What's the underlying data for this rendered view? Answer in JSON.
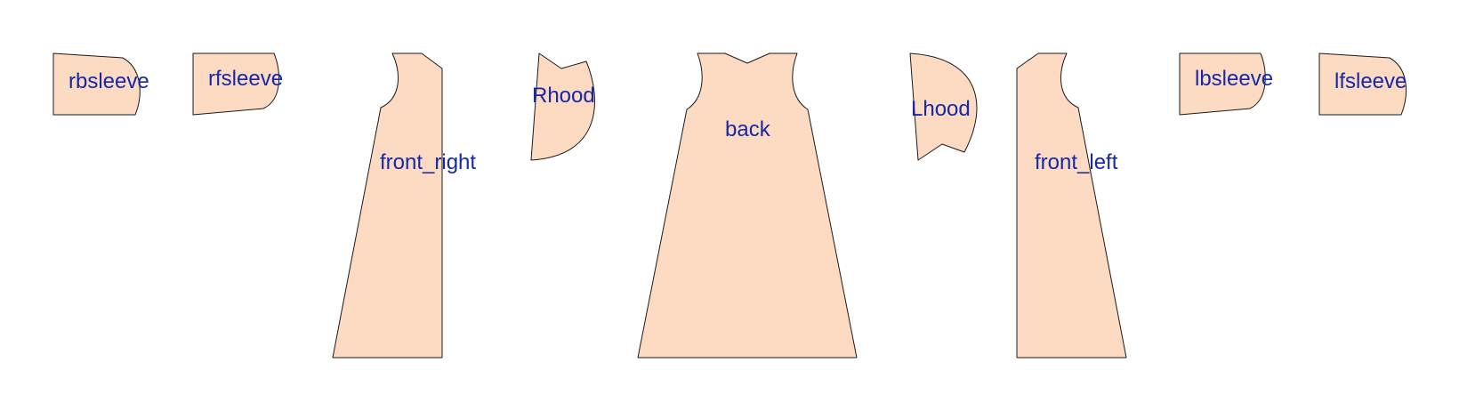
{
  "colors": {
    "piece_fill": "#fddac2",
    "piece_stroke": "#1a1a1a",
    "label_color": "#1428a8",
    "background": "#ffffff"
  },
  "pieces": [
    {
      "id": "rbsleeve",
      "label": "rbsleeve"
    },
    {
      "id": "rfsleeve",
      "label": "rfsleeve"
    },
    {
      "id": "front_right",
      "label": "front_right"
    },
    {
      "id": "rhood",
      "label": "Rhood"
    },
    {
      "id": "back",
      "label": "back"
    },
    {
      "id": "lhood",
      "label": "Lhood"
    },
    {
      "id": "front_left",
      "label": "front_left"
    },
    {
      "id": "lbsleeve",
      "label": "lbsleeve"
    },
    {
      "id": "lfsleeve",
      "label": "lfsleeve"
    }
  ]
}
